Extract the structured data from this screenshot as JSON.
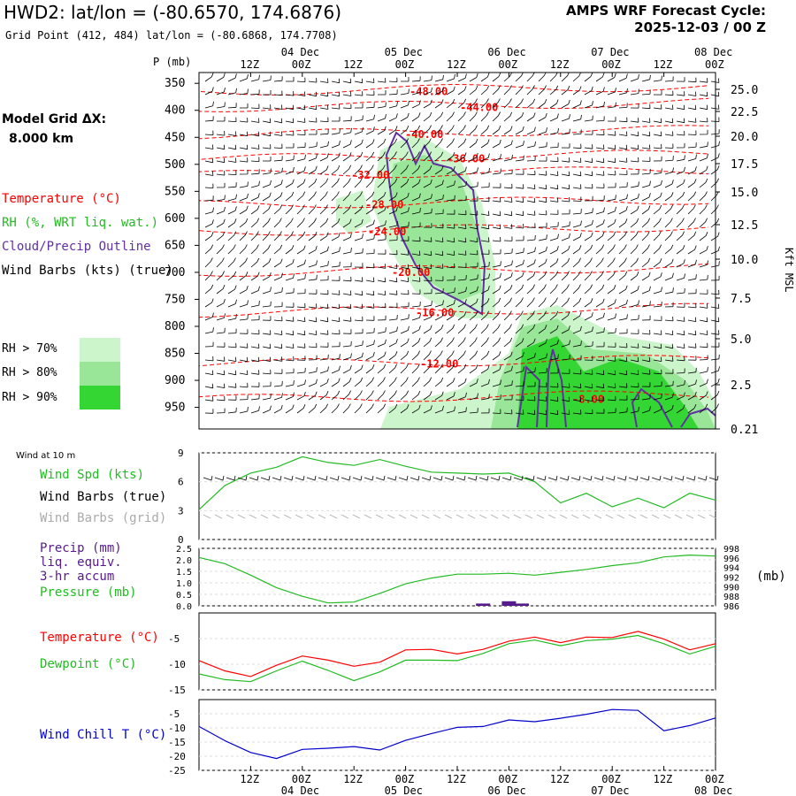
{
  "header": {
    "title": "HWD2:  lat/lon = (-80.6570, 174.6876)",
    "subtitle": "Grid Point (412, 484) lat/lon = (-80.6868, 174.7708)",
    "cycle_line1": "AMPS WRF Forecast Cycle:",
    "cycle_line2": "2025-12-03 / 00  Z"
  },
  "model_grid": {
    "label": "Model Grid ΔX:",
    "value": "8.000 km"
  },
  "legend": {
    "temperature": "Temperature (°C)",
    "rh": "RH (%, WRT liq. wat.)",
    "cloud": "Cloud/Precip Outline",
    "wind": "Wind Barbs (kts) (true)",
    "rh70": "RH > 70%",
    "rh80": "RH > 80%",
    "rh90": "RH > 90%"
  },
  "colors": {
    "temperature": "#ff0000",
    "rh": "#22bb22",
    "cloud": "#6030a0",
    "wind": "#000000",
    "rh70": "#ccf5cc",
    "rh80": "#99e699",
    "rh90": "#33d633",
    "precip": "#551a8b",
    "wind_chill": "#0000cc",
    "grid_barb": "#aaaaaa"
  },
  "time_axis": {
    "top_ticks": [
      "12Z",
      "00Z",
      "12Z",
      "00Z",
      "12Z",
      "00Z",
      "12Z",
      "00Z",
      "12Z",
      "00Z"
    ],
    "top_dates": [
      "04 Dec",
      "05 Dec",
      "06 Dec",
      "07 Dec",
      "08 Dec"
    ],
    "bottom_ticks": [
      "12Z",
      "00Z",
      "12Z",
      "00Z",
      "12Z",
      "00Z",
      "12Z",
      "00Z",
      "12Z",
      "00Z"
    ],
    "bottom_dates": [
      "04 Dec",
      "05 Dec",
      "06 Dec",
      "07 Dec",
      "08 Dec"
    ]
  },
  "cross_section": {
    "p_label": "P (mb)",
    "right_label": "Kft MSL",
    "pressure_ticks": [
      "350",
      "400",
      "450",
      "500",
      "550",
      "600",
      "650",
      "700",
      "750",
      "800",
      "850",
      "900",
      "950"
    ],
    "height_ticks": [
      "25.0",
      "22.5",
      "20.0",
      "17.5",
      "15.0",
      "12.5",
      "10.0",
      "7.5",
      "5.0",
      "2.5",
      "0.21"
    ],
    "temperature_labels": [
      "-48.00",
      "-44.00",
      "-40.00",
      "-36.00",
      "-32.00",
      "-28.00",
      "-24.00",
      "-20.00",
      "-16.00",
      "-12.00",
      "-8.00"
    ]
  },
  "wind_panel": {
    "title": "Wind at 10 m",
    "speed_label": "Wind Spd (kts)",
    "barbs_true": "Wind Barbs (true)",
    "barbs_grid": "Wind Barbs (grid)",
    "y_ticks": [
      "9",
      "6",
      "3",
      "0"
    ]
  },
  "precip_panel": {
    "precip_label": "Precip (mm)",
    "liq_label": "liq. equiv.",
    "accum_label": "3-hr accum",
    "pressure_label": "Pressure (mb)",
    "mb_unit": "(mb)",
    "left_ticks": [
      "2.5",
      "2.0",
      "1.5",
      "1.0",
      "0.5",
      "0.0"
    ],
    "right_ticks": [
      "998",
      "996",
      "994",
      "992",
      "990",
      "988",
      "986"
    ]
  },
  "temp_panel": {
    "temperature_label": "Temperature (°C)",
    "dewpoint_label": "Dewpoint (°C)",
    "y_ticks": [
      "-5",
      "-10",
      "-15"
    ]
  },
  "chill_panel": {
    "label": "Wind Chill T (°C)",
    "y_ticks": [
      "-5",
      "-10",
      "-15",
      "-20",
      "-25"
    ]
  },
  "chart_data": [
    {
      "type": "line",
      "panel": "wind_speed",
      "x_unit": "forecast hour",
      "ylim": [
        0,
        9
      ],
      "x": [
        0,
        6,
        12,
        18,
        24,
        30,
        36,
        42,
        48,
        54,
        60,
        66,
        72,
        78,
        84,
        90,
        96,
        102,
        108,
        114,
        120
      ],
      "series": [
        {
          "name": "Wind Spd (kts)",
          "values": [
            3.1,
            5.6,
            6.9,
            7.5,
            8.6,
            8.0,
            7.7,
            8.3,
            7.6,
            7.0,
            6.9,
            6.8,
            6.9,
            6.0,
            3.8,
            4.8,
            3.4,
            4.3,
            3.3,
            4.8,
            4.1
          ]
        }
      ]
    },
    {
      "type": "bar",
      "panel": "precip",
      "x_unit": "forecast hour",
      "ylim": [
        0,
        2.5
      ],
      "x": [
        66,
        72,
        75
      ],
      "series": [
        {
          "name": "Precip (mm)",
          "values": [
            0.1,
            0.2,
            0.1
          ]
        }
      ]
    },
    {
      "type": "line",
      "panel": "pressure",
      "x_unit": "forecast hour",
      "ylim": [
        986,
        998
      ],
      "x": [
        0,
        6,
        12,
        18,
        24,
        30,
        36,
        42,
        48,
        54,
        60,
        66,
        72,
        78,
        84,
        90,
        96,
        102,
        108,
        114,
        120
      ],
      "series": [
        {
          "name": "Pressure (mb)",
          "values": [
            996.1,
            994.8,
            992.4,
            989.8,
            988.0,
            986.6,
            986.8,
            988.6,
            990.6,
            991.8,
            992.6,
            992.6,
            992.8,
            992.4,
            993.0,
            993.6,
            994.4,
            995.0,
            996.2,
            996.6,
            996.4
          ]
        }
      ]
    },
    {
      "type": "line",
      "panel": "temperature",
      "x_unit": "forecast hour",
      "ylim": [
        -15,
        0
      ],
      "x": [
        0,
        6,
        12,
        18,
        24,
        30,
        36,
        42,
        48,
        54,
        60,
        66,
        72,
        78,
        84,
        90,
        96,
        102,
        108,
        114,
        120
      ],
      "series": [
        {
          "name": "Temperature (°C)",
          "values": [
            -9.3,
            -11.3,
            -12.4,
            -10.2,
            -8.4,
            -9.2,
            -10.4,
            -9.6,
            -7.2,
            -7.1,
            -8.0,
            -7.1,
            -5.5,
            -4.7,
            -5.8,
            -4.7,
            -4.8,
            -3.6,
            -5.1,
            -7.2,
            -6.0
          ]
        },
        {
          "name": "Dewpoint (°C)",
          "values": [
            -11.9,
            -13.0,
            -13.4,
            -11.3,
            -9.4,
            -11.2,
            -13.2,
            -11.5,
            -9.2,
            -9.2,
            -9.3,
            -7.9,
            -6.0,
            -5.3,
            -6.4,
            -5.4,
            -5.1,
            -4.4,
            -6.0,
            -8.0,
            -6.5
          ]
        }
      ]
    },
    {
      "type": "line",
      "panel": "wind_chill",
      "x_unit": "forecast hour",
      "ylim": [
        -25,
        0
      ],
      "x": [
        0,
        6,
        12,
        18,
        24,
        30,
        36,
        42,
        48,
        54,
        60,
        66,
        72,
        78,
        84,
        90,
        96,
        102,
        108,
        114,
        120
      ],
      "series": [
        {
          "name": "Wind Chill T (°C)",
          "values": [
            -9.5,
            -14.5,
            -18.7,
            -20.8,
            -17.6,
            -17.2,
            -16.6,
            -17.8,
            -14.4,
            -12.0,
            -9.8,
            -9.5,
            -7.2,
            -7.8,
            -6.6,
            -5.2,
            -3.5,
            -3.8,
            -11.0,
            -9.2,
            -6.5
          ]
        }
      ]
    }
  ]
}
